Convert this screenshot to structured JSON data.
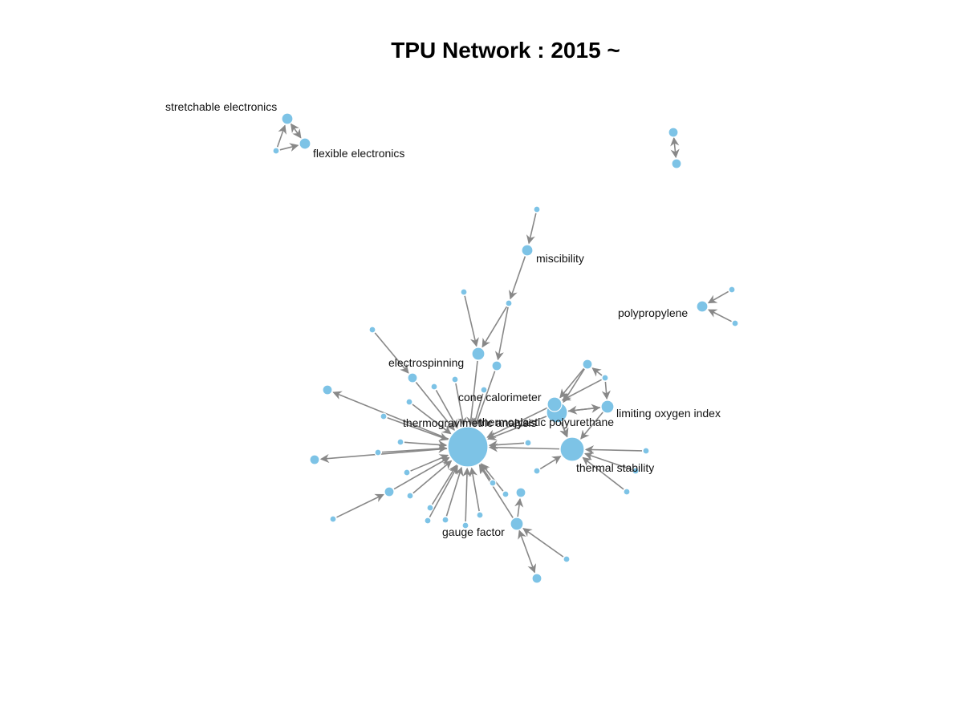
{
  "title": "TPU Network : 2015 ~",
  "colors": {
    "node": "#7dc3e6",
    "edge": "#888888"
  },
  "nodes": [
    {
      "id": "tga",
      "label": "thermogravimetric analysis"
    },
    {
      "id": "tpu",
      "label": "thermoplastic polyurethane"
    },
    {
      "id": "ts",
      "label": "thermal stability"
    },
    {
      "id": "cc",
      "label": "cone calorimeter"
    },
    {
      "id": "loi",
      "label": "limiting oxygen index"
    },
    {
      "id": "es",
      "label": "electrospinning"
    },
    {
      "id": "gf",
      "label": "gauge factor"
    },
    {
      "id": "mis",
      "label": "miscibility"
    },
    {
      "id": "pp",
      "label": "polypropylene"
    },
    {
      "id": "se",
      "label": "stretchable electronics"
    },
    {
      "id": "fe",
      "label": "flexible electronics"
    }
  ]
}
